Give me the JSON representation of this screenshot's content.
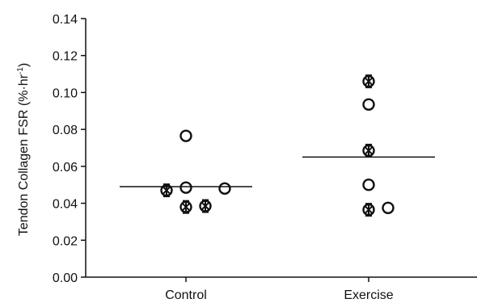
{
  "chart_data": {
    "type": "scatter",
    "categories": [
      "Control",
      "Exercise"
    ],
    "ylabel_main": "Tendon Collagen FSR (%·hr",
    "ylabel_sup": "-1",
    "ylabel_close": ")",
    "ylim": [
      0.0,
      0.14
    ],
    "yticks": [
      "0.00",
      "0.02",
      "0.04",
      "0.06",
      "0.08",
      "0.10",
      "0.12",
      "0.14"
    ],
    "grid": false,
    "groups": [
      {
        "category": "Control",
        "mean": 0.049,
        "points": [
          {
            "y": 0.0765,
            "slot": 0,
            "crossed": false
          },
          {
            "y": 0.047,
            "slot": -1,
            "crossed": true
          },
          {
            "y": 0.0485,
            "slot": 0,
            "crossed": false
          },
          {
            "y": 0.048,
            "slot": 2,
            "crossed": false
          },
          {
            "y": 0.038,
            "slot": 0,
            "crossed": true
          },
          {
            "y": 0.0385,
            "slot": 1,
            "crossed": true
          }
        ]
      },
      {
        "category": "Exercise",
        "mean": 0.065,
        "points": [
          {
            "y": 0.106,
            "slot": 0,
            "crossed": true
          },
          {
            "y": 0.0935,
            "slot": 0,
            "crossed": false
          },
          {
            "y": 0.0685,
            "slot": 0,
            "crossed": true
          },
          {
            "y": 0.05,
            "slot": 0,
            "crossed": false
          },
          {
            "y": 0.0365,
            "slot": 0,
            "crossed": true
          },
          {
            "y": 0.0375,
            "slot": 1,
            "crossed": false
          }
        ]
      }
    ]
  }
}
